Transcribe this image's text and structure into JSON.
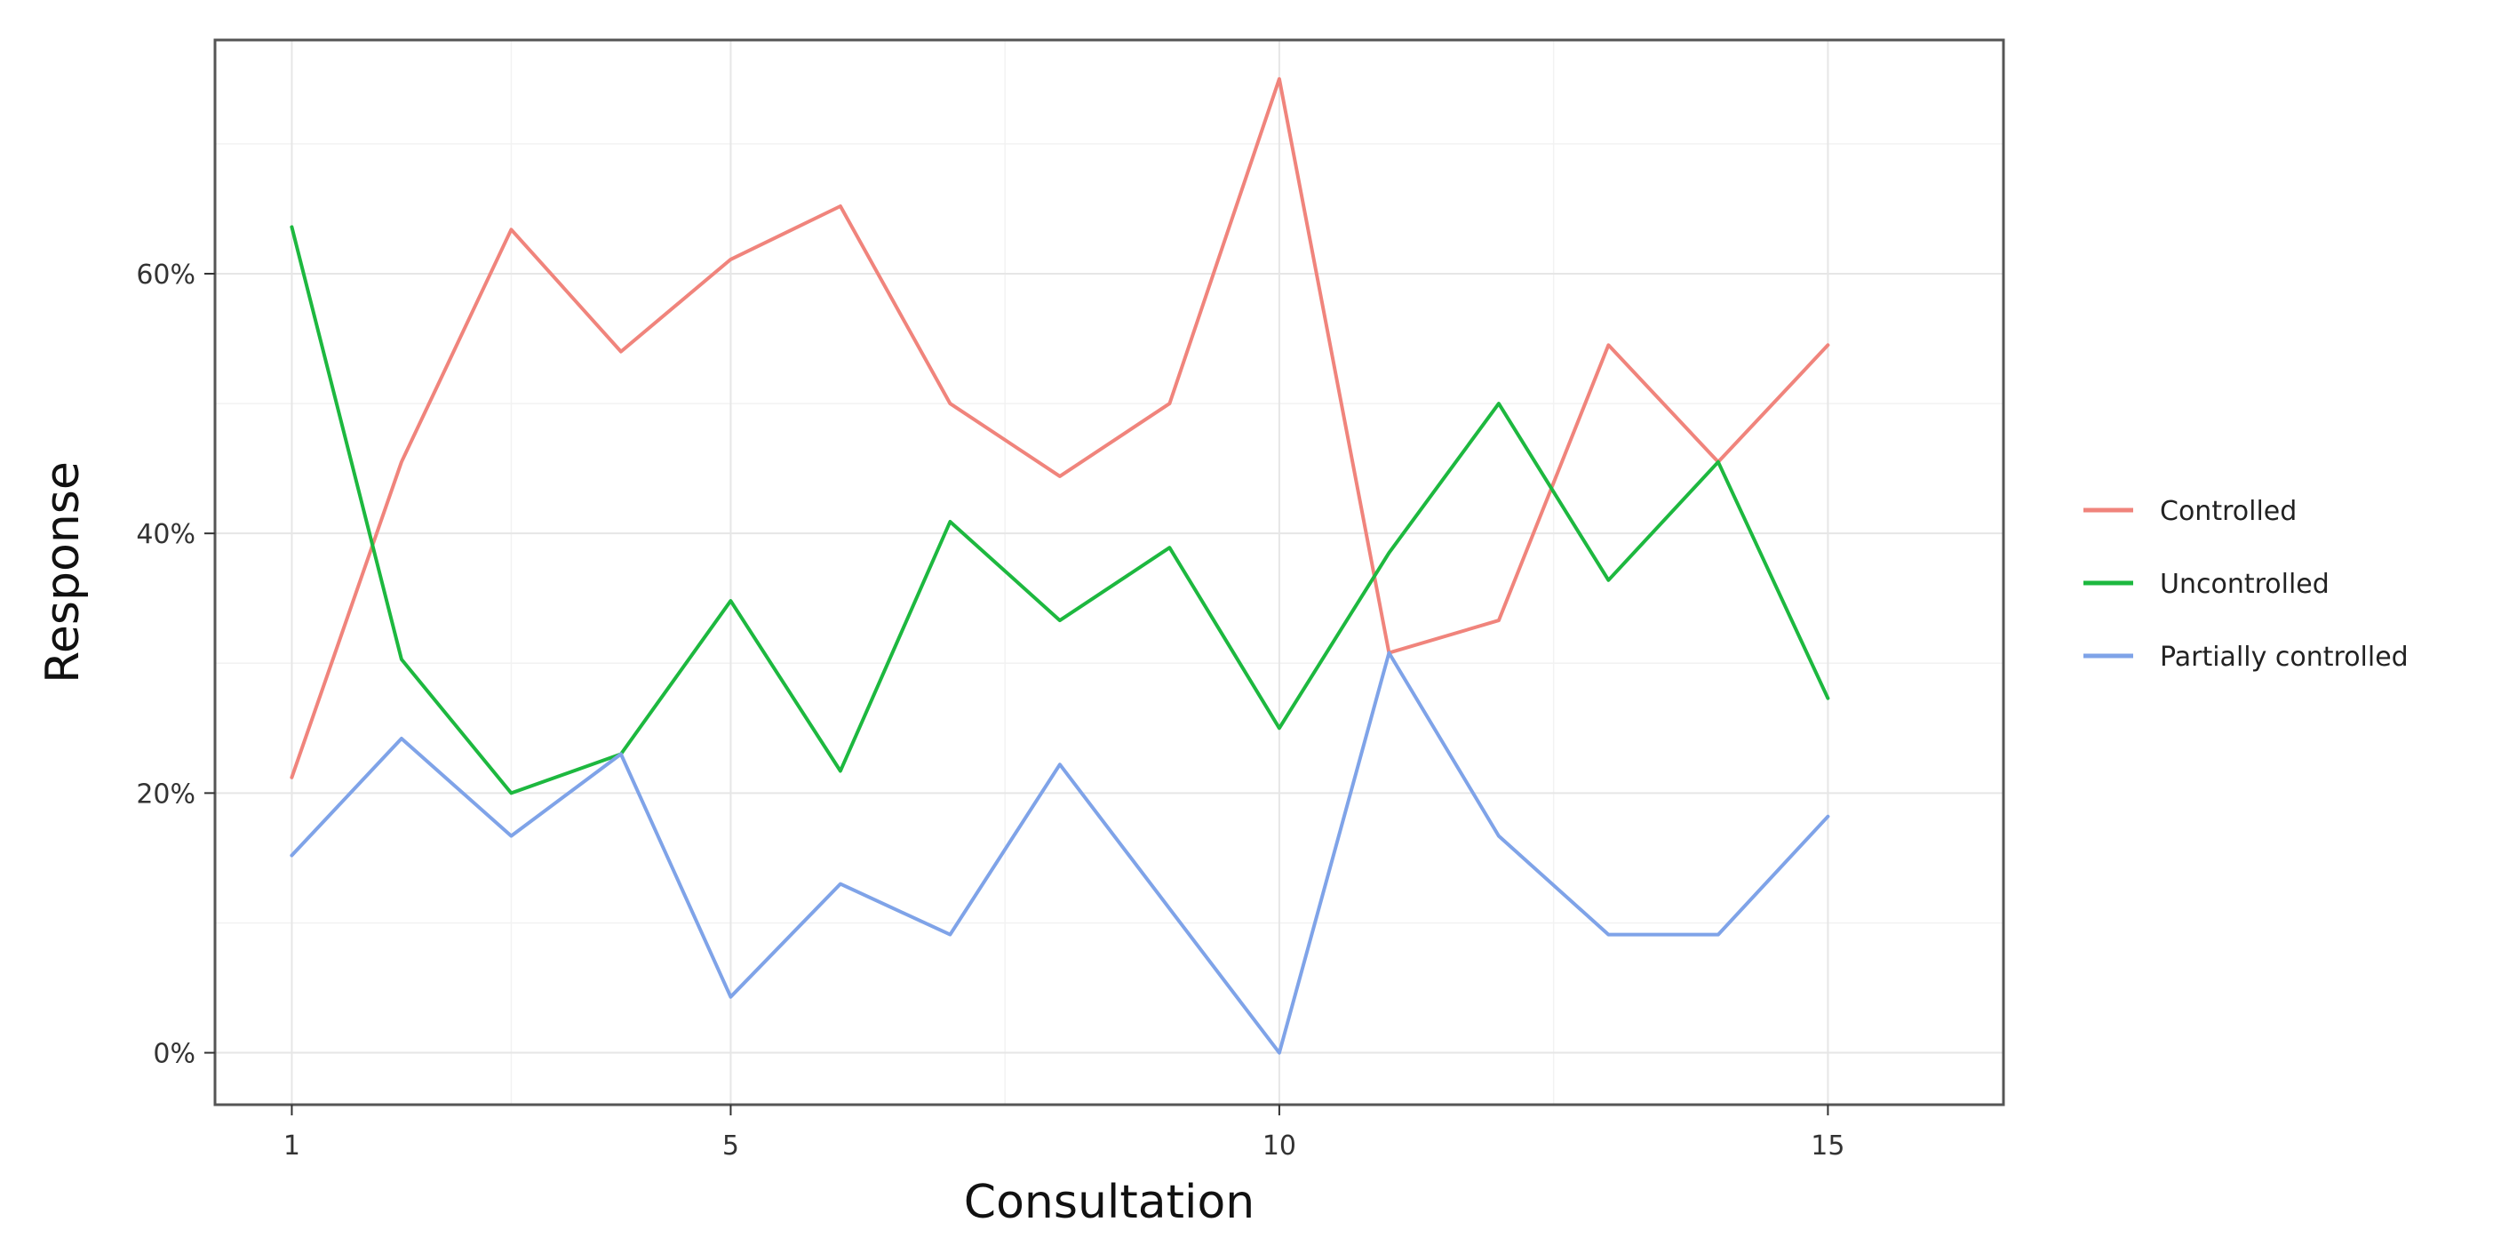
{
  "chart_data": {
    "type": "line",
    "title": "",
    "xlabel": "Consultation",
    "ylabel": "Response",
    "x": [
      1,
      2,
      3,
      4,
      5,
      6,
      7,
      8,
      9,
      10,
      11,
      12,
      13,
      14,
      15
    ],
    "xlim": [
      0.3,
      16.6
    ],
    "ylim": [
      -4,
      78
    ],
    "x_ticks": [
      1,
      5,
      10,
      15
    ],
    "x_tick_labels": [
      "1",
      "5",
      "10",
      "15"
    ],
    "y_ticks": [
      0,
      20,
      40,
      60
    ],
    "y_tick_labels": [
      "0%",
      "20%",
      "40%",
      "60%"
    ],
    "grid": true,
    "legend_position": "right",
    "series": [
      {
        "name": "Controlled",
        "color": "#F0847C",
        "values": [
          21.2,
          45.5,
          63.4,
          54.0,
          61.1,
          65.2,
          50.0,
          44.4,
          50.0,
          75.0,
          30.8,
          33.3,
          54.5,
          45.5,
          54.5
        ]
      },
      {
        "name": "Uncontrolled",
        "color": "#1DB83F",
        "values": [
          63.6,
          30.3,
          20.0,
          23.0,
          34.8,
          21.7,
          40.9,
          33.3,
          38.9,
          25.0,
          38.5,
          50.0,
          36.4,
          45.5,
          27.3
        ]
      },
      {
        "name": "Partially controlled",
        "color": "#7FA3E8",
        "values": [
          15.2,
          24.2,
          16.7,
          23.0,
          4.3,
          13.0,
          9.1,
          22.2,
          11.1,
          0.0,
          30.8,
          16.7,
          9.1,
          9.1,
          18.2
        ]
      }
    ]
  }
}
